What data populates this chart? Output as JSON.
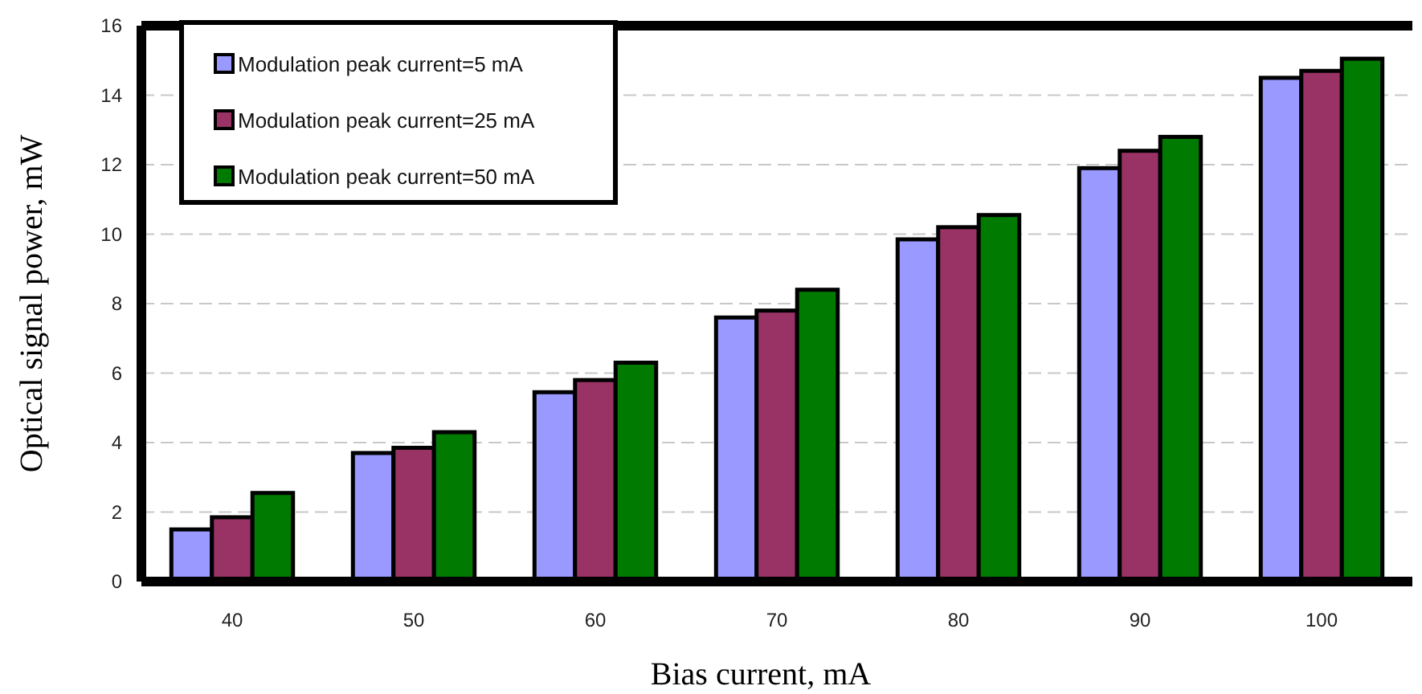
{
  "chart_data": {
    "type": "bar",
    "xlabel": "Bias current, mA",
    "ylabel": "Optical signal power, mW",
    "categories": [
      "40",
      "50",
      "60",
      "70",
      "80",
      "90",
      "100"
    ],
    "series": [
      {
        "name": "Modulation peak current=5 mA",
        "color": "#9999ff",
        "values": [
          1.5,
          3.7,
          5.45,
          7.6,
          9.85,
          11.9,
          14.5
        ]
      },
      {
        "name": "Modulation peak current=25 mA",
        "color": "#993366",
        "values": [
          1.85,
          3.85,
          5.8,
          7.8,
          10.2,
          12.4,
          14.7
        ]
      },
      {
        "name": "Modulation peak current=50 mA",
        "color": "#007a00",
        "values": [
          2.55,
          4.3,
          6.3,
          8.4,
          10.55,
          12.8,
          15.05
        ]
      }
    ],
    "ylim": [
      0,
      16
    ],
    "yticks": [
      0,
      2,
      4,
      6,
      8,
      10,
      12,
      14,
      16
    ],
    "grid": "y",
    "legend": "top left"
  }
}
